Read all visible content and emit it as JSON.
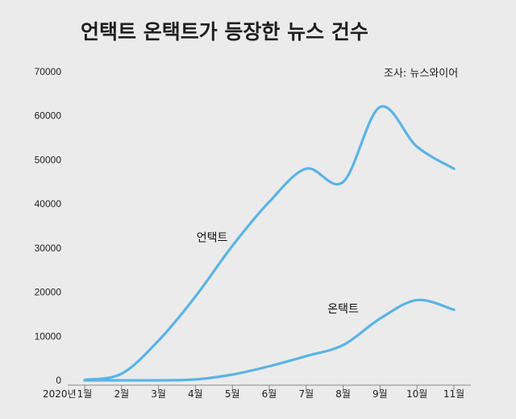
{
  "chart_data": {
    "type": "line",
    "title": "언택트 온택트가 등장한 뉴스 건수",
    "source": "조사: 뉴스와이어",
    "year_label": "2020년",
    "categories": [
      "1월",
      "2월",
      "3월",
      "4월",
      "5월",
      "6월",
      "7월",
      "8월",
      "9월",
      "10월",
      "11월"
    ],
    "ylim": [
      0,
      70000
    ],
    "yticks": [
      0,
      10000,
      20000,
      30000,
      40000,
      50000,
      60000,
      70000
    ],
    "xlabel": "",
    "ylabel": "",
    "grid": false,
    "line_color": "#5ab4e5",
    "series": [
      {
        "name": "언택트",
        "values": [
          100,
          1500,
          9000,
          19000,
          30500,
          40500,
          48000,
          45000,
          62000,
          53000,
          48000
        ]
      },
      {
        "name": "온택트",
        "values": [
          0,
          0,
          0,
          200,
          1300,
          3200,
          5500,
          8000,
          14000,
          18200,
          16000
        ]
      }
    ]
  }
}
